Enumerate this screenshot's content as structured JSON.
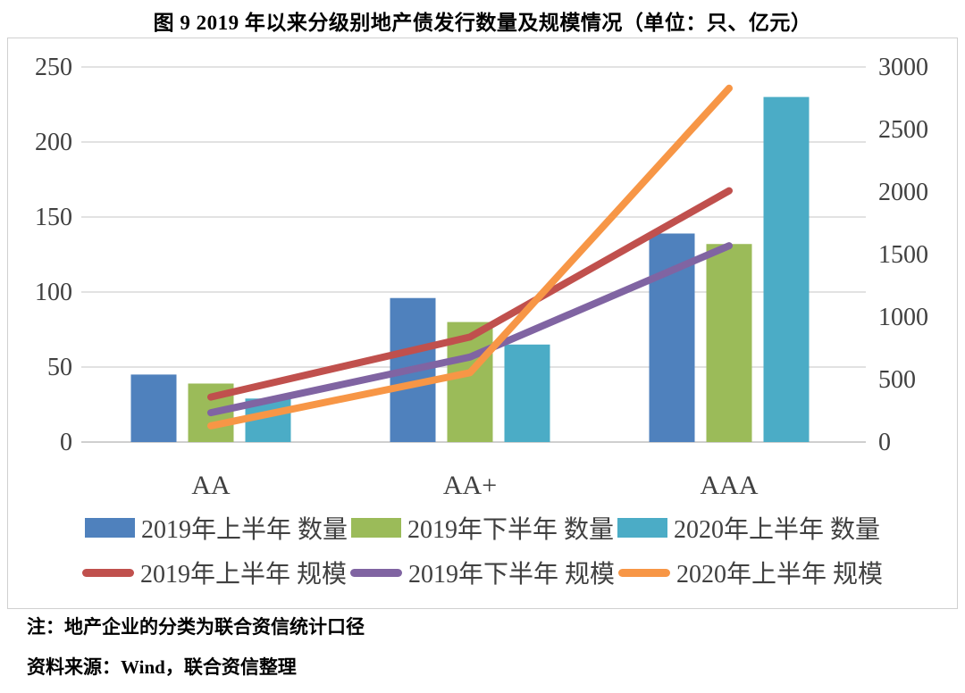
{
  "title": "图 9  2019 年以来分级别地产债发行数量及规模情况（单位：只、亿元）",
  "note": "注：地产企业的分类为联合资信统计口径",
  "source": "资料来源：Wind，联合资信整理",
  "colors": {
    "bar_blue": "#4f81bd",
    "bar_green": "#9bbb59",
    "bar_teal": "#4bacc6",
    "line_red": "#c0504d",
    "line_purple": "#8064a2",
    "line_orange": "#f79646",
    "gridline": "#d9d9d9",
    "axis_line": "#bfbfbf",
    "axis_text": "#404040"
  },
  "chart_data": {
    "type": "combo-bar-line",
    "categories": [
      "AA",
      "AA+",
      "AAA"
    ],
    "bar_series": [
      {
        "name": "2019年上半年 数量",
        "color": "#4f81bd",
        "axis": "left",
        "values": [
          45,
          96,
          139
        ]
      },
      {
        "name": "2019年下半年 数量",
        "color": "#9bbb59",
        "axis": "left",
        "values": [
          39,
          80,
          132
        ]
      },
      {
        "name": "2020年上半年 数量",
        "color": "#4bacc6",
        "axis": "left",
        "values": [
          29,
          65,
          230
        ]
      }
    ],
    "line_series": [
      {
        "name": "2019年上半年 规模",
        "color": "#c0504d",
        "axis": "right",
        "values": [
          360,
          840,
          2010
        ]
      },
      {
        "name": "2019年下半年 规模",
        "color": "#8064a2",
        "axis": "right",
        "values": [
          235,
          680,
          1570
        ]
      },
      {
        "name": "2020年上半年 规模",
        "color": "#f79646",
        "axis": "right",
        "values": [
          130,
          555,
          2830
        ]
      }
    ],
    "left_axis": {
      "min": 0,
      "max": 250,
      "step": 50,
      "ticks": [
        "0",
        "50",
        "100",
        "150",
        "200",
        "250"
      ],
      "unit": "只"
    },
    "right_axis": {
      "min": 0,
      "max": 3000,
      "step": 500,
      "ticks": [
        "0",
        "500",
        "1000",
        "1500",
        "2000",
        "2500",
        "3000"
      ],
      "unit": "亿元"
    },
    "grid": true,
    "legend_position": "bottom-two-rows"
  }
}
